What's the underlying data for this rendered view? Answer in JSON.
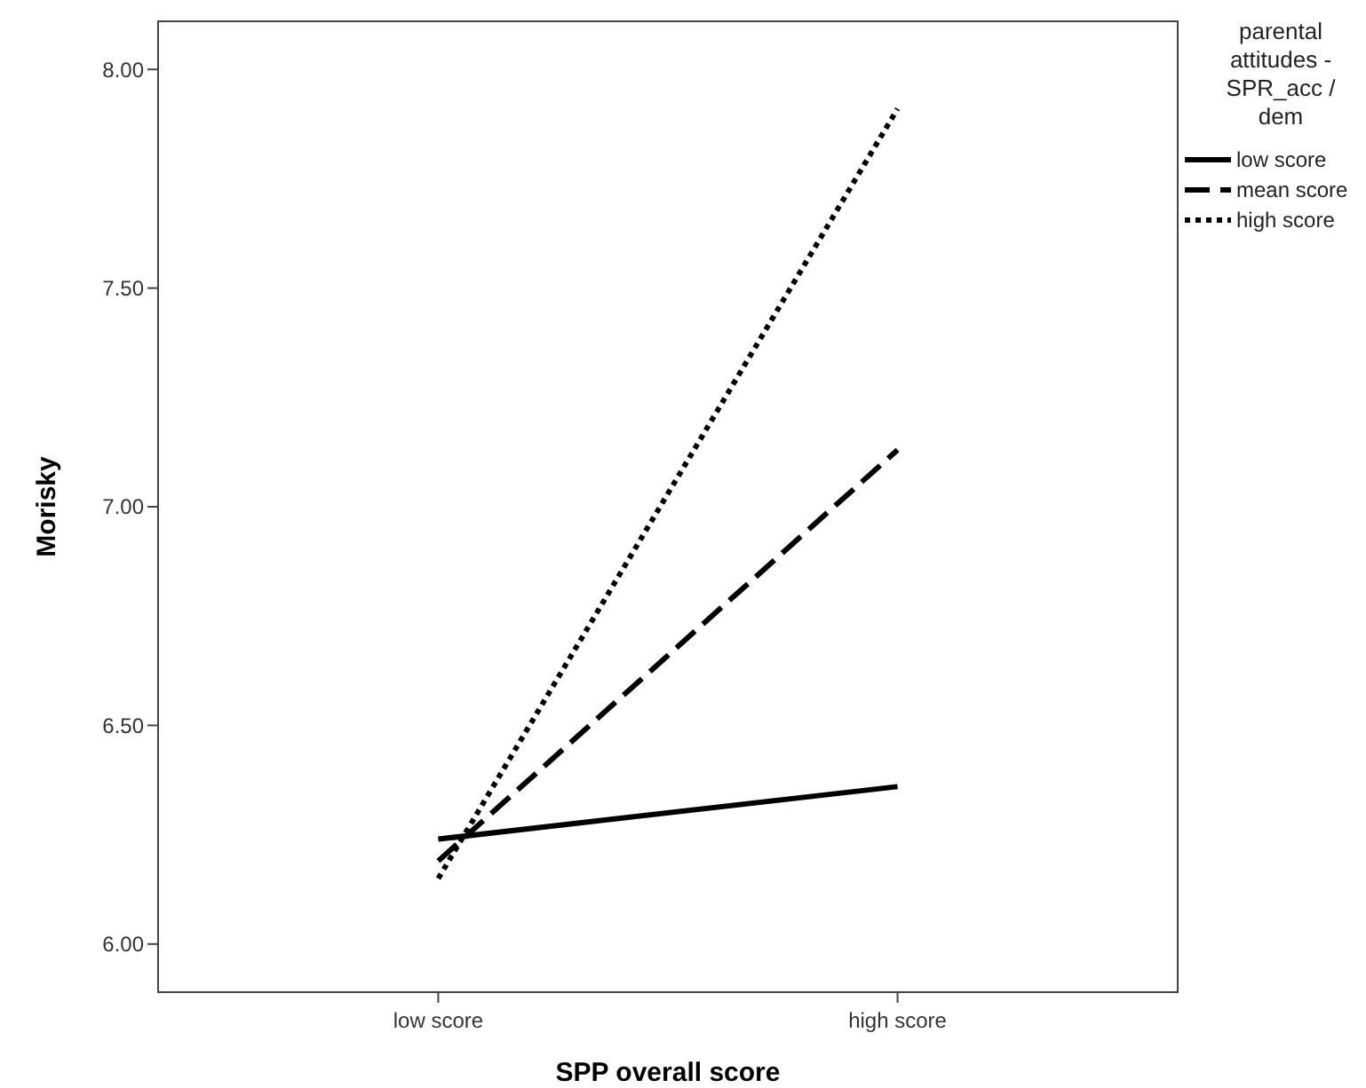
{
  "chart_data": {
    "type": "line",
    "xlabel": "SPP overall score",
    "ylabel": "Morisky",
    "legend_title": "parental attitudes - SPR_acc / dem",
    "categories": [
      "low score",
      "high score"
    ],
    "series": [
      {
        "name": "low score",
        "color": "#000000",
        "values": [
          6.24,
          6.36
        ],
        "line_style": "solid"
      },
      {
        "name": "mean score",
        "color": "#000000",
        "values": [
          6.19,
          7.13
        ],
        "line_style": "dashed"
      },
      {
        "name": "high score",
        "color": "#000000",
        "values": [
          6.15,
          7.91
        ],
        "line_style": "dotted"
      }
    ],
    "ylim": [
      5.89,
      8.11
    ],
    "yticks": [
      {
        "value": 6,
        "label": "6.00"
      },
      {
        "value": 6.5,
        "label": "6.50"
      },
      {
        "value": 7,
        "label": "7.00"
      },
      {
        "value": 7.5,
        "label": "7.50"
      },
      {
        "value": 8,
        "label": "8.00"
      }
    ],
    "grid": false,
    "legend": "top right",
    "marker": "none"
  }
}
